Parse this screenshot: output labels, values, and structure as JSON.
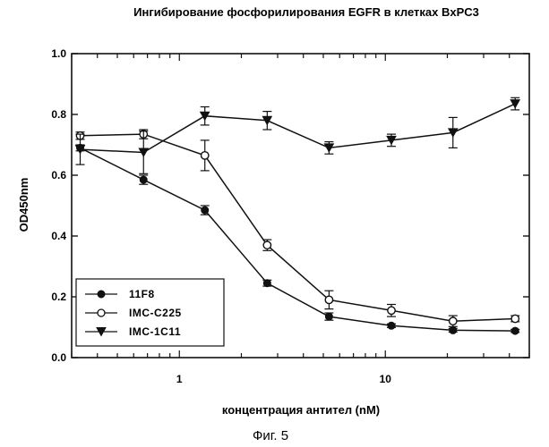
{
  "figure_caption": "Фиг. 5",
  "chart_data": {
    "type": "line",
    "title": "Ингибирование фосфорилирования EGFR в клетках BxPC3",
    "xlabel": "концентрация антител (nM)",
    "ylabel": "OD450nm",
    "x_scale": "log",
    "xlim": [
      0.3,
      50
    ],
    "ylim": [
      0.0,
      1.0
    ],
    "x_ticks": [
      {
        "value": 1,
        "label": "1"
      },
      {
        "value": 10,
        "label": "10"
      }
    ],
    "y_ticks": [
      {
        "value": 0.0,
        "label": "0.0"
      },
      {
        "value": 0.2,
        "label": "0.2"
      },
      {
        "value": 0.4,
        "label": "0.4"
      },
      {
        "value": 0.6,
        "label": "0.6"
      },
      {
        "value": 0.8,
        "label": "0.8"
      },
      {
        "value": 1.0,
        "label": "1.0"
      }
    ],
    "grid": false,
    "legend_position": "bottom-left",
    "series": [
      {
        "name": "11F8",
        "marker": "filled-circle",
        "x": [
          0.33,
          0.67,
          1.33,
          2.67,
          5.33,
          10.7,
          21.3,
          42.7
        ],
        "values": [
          0.69,
          0.585,
          0.485,
          0.245,
          0.135,
          0.105,
          0.09,
          0.088
        ],
        "errors": [
          0.01,
          0.015,
          0.015,
          0.01,
          0.012,
          0.006,
          0.006,
          0.005
        ]
      },
      {
        "name": "IMC-C225",
        "marker": "open-circle",
        "x": [
          0.33,
          0.67,
          1.33,
          2.67,
          5.33,
          10.7,
          21.3,
          42.7
        ],
        "values": [
          0.73,
          0.735,
          0.665,
          0.37,
          0.19,
          0.155,
          0.12,
          0.128
        ],
        "errors": [
          0.012,
          0.015,
          0.05,
          0.018,
          0.03,
          0.02,
          0.018,
          0.01
        ]
      },
      {
        "name": "IMC-1C11",
        "marker": "filled-triangle-down",
        "x": [
          0.33,
          0.67,
          1.33,
          2.67,
          5.33,
          10.7,
          21.3,
          42.7
        ],
        "values": [
          0.685,
          0.675,
          0.795,
          0.78,
          0.69,
          0.715,
          0.74,
          0.835
        ],
        "errors": [
          0.05,
          0.07,
          0.03,
          0.03,
          0.02,
          0.02,
          0.05,
          0.02
        ]
      }
    ],
    "colors": {
      "ink": "#111111",
      "background": "#ffffff"
    }
  }
}
